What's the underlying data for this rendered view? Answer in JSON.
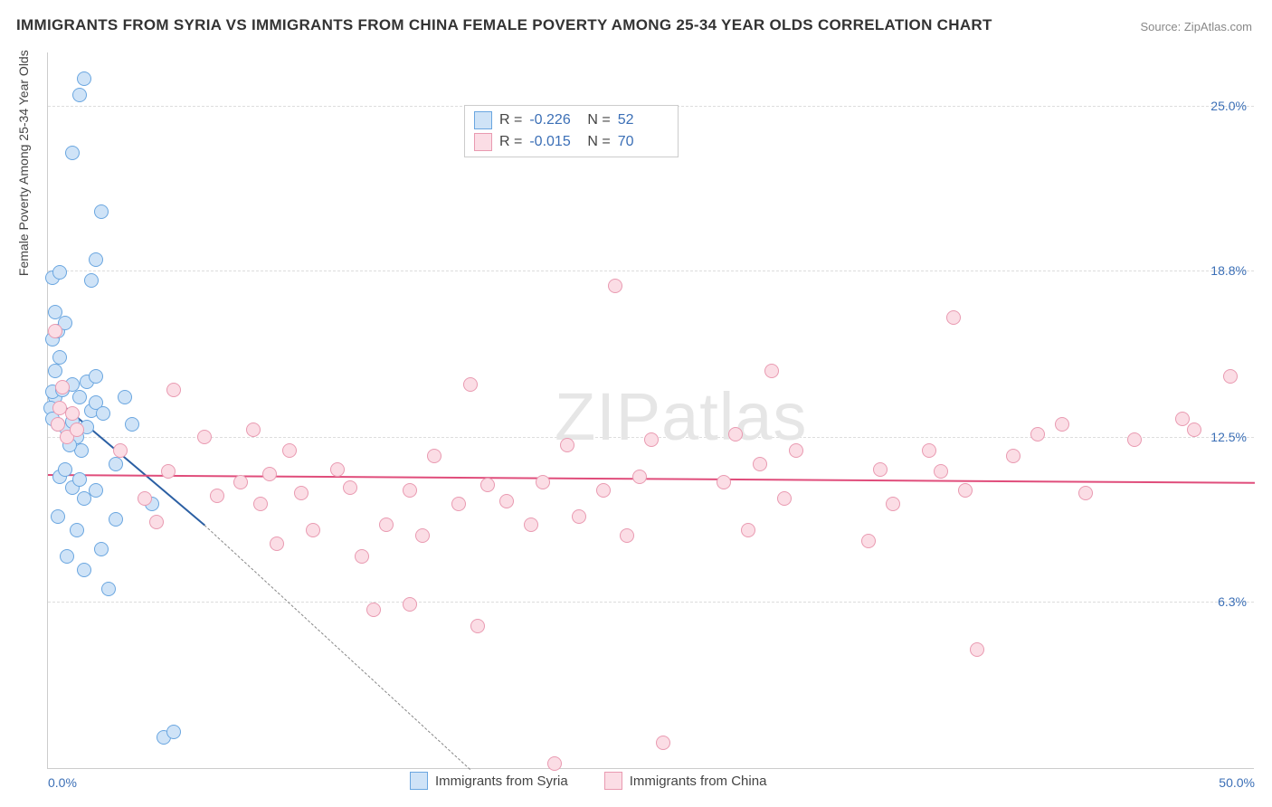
{
  "title": "IMMIGRANTS FROM SYRIA VS IMMIGRANTS FROM CHINA FEMALE POVERTY AMONG 25-34 YEAR OLDS CORRELATION CHART",
  "source_label": "Source: ZipAtlas.com",
  "watermark": {
    "bold": "ZIP",
    "light": "atlas"
  },
  "y_axis_title": "Female Poverty Among 25-34 Year Olds",
  "chart": {
    "type": "scatter",
    "xlim": [
      0,
      50
    ],
    "ylim": [
      0,
      27
    ],
    "x_ticks": [
      {
        "v": 0,
        "label": "0.0%"
      },
      {
        "v": 50,
        "label": "50.0%"
      }
    ],
    "y_ticks": [
      {
        "v": 6.3,
        "label": "6.3%"
      },
      {
        "v": 12.5,
        "label": "12.5%"
      },
      {
        "v": 18.8,
        "label": "18.8%"
      },
      {
        "v": 25.0,
        "label": "25.0%"
      }
    ],
    "grid_color": "#dddddd",
    "axis_color": "#cccccc",
    "background_color": "#ffffff",
    "marker_radius": 8,
    "marker_stroke_width": 1.5,
    "series": [
      {
        "name": "Immigrants from Syria",
        "fill": "#cfe3f7",
        "stroke": "#6aa6e0",
        "trend_color": "#2b5fa3",
        "R": "-0.226",
        "N": "52",
        "trend": {
          "x1": 0,
          "y1": 14.2,
          "x2": 6.5,
          "y2": 9.2,
          "dash_to_x": 17.5,
          "dash_to_y": 0
        },
        "points": [
          [
            0.3,
            14.0
          ],
          [
            0.2,
            14.2
          ],
          [
            0.1,
            13.6
          ],
          [
            0.4,
            13.0
          ],
          [
            0.2,
            13.2
          ],
          [
            0.6,
            14.3
          ],
          [
            0.3,
            15.0
          ],
          [
            0.5,
            15.5
          ],
          [
            0.2,
            16.2
          ],
          [
            0.4,
            16.5
          ],
          [
            0.7,
            16.8
          ],
          [
            0.3,
            17.2
          ],
          [
            0.8,
            12.8
          ],
          [
            1.0,
            13.1
          ],
          [
            1.2,
            12.5
          ],
          [
            1.4,
            12.0
          ],
          [
            1.6,
            12.9
          ],
          [
            1.8,
            13.5
          ],
          [
            1.0,
            14.5
          ],
          [
            1.3,
            14.0
          ],
          [
            1.6,
            14.6
          ],
          [
            2.0,
            13.8
          ],
          [
            2.3,
            13.4
          ],
          [
            2.0,
            14.8
          ],
          [
            0.5,
            11.0
          ],
          [
            0.7,
            11.3
          ],
          [
            1.0,
            10.6
          ],
          [
            1.3,
            10.9
          ],
          [
            1.5,
            10.2
          ],
          [
            2.0,
            10.5
          ],
          [
            0.4,
            9.5
          ],
          [
            1.2,
            9.0
          ],
          [
            2.2,
            8.3
          ],
          [
            2.8,
            9.4
          ],
          [
            0.8,
            8.0
          ],
          [
            1.5,
            7.5
          ],
          [
            2.5,
            6.8
          ],
          [
            0.9,
            12.2
          ],
          [
            2.8,
            11.5
          ],
          [
            0.2,
            18.5
          ],
          [
            0.5,
            18.7
          ],
          [
            1.8,
            18.4
          ],
          [
            1.0,
            23.2
          ],
          [
            2.2,
            21.0
          ],
          [
            1.5,
            26.0
          ],
          [
            1.3,
            25.4
          ],
          [
            2.0,
            19.2
          ],
          [
            4.8,
            1.2
          ],
          [
            5.2,
            1.4
          ],
          [
            4.3,
            10.0
          ],
          [
            3.5,
            13.0
          ],
          [
            3.2,
            14.0
          ]
        ]
      },
      {
        "name": "Immigrants from China",
        "fill": "#fbdde5",
        "stroke": "#e99ab1",
        "trend_color": "#e04d7b",
        "R": "-0.015",
        "N": "70",
        "trend": {
          "x1": 0,
          "y1": 11.1,
          "x2": 50,
          "y2": 10.8
        },
        "points": [
          [
            0.3,
            16.5
          ],
          [
            0.5,
            13.6
          ],
          [
            0.4,
            13.0
          ],
          [
            0.8,
            12.5
          ],
          [
            1.0,
            13.4
          ],
          [
            0.6,
            14.4
          ],
          [
            1.2,
            12.8
          ],
          [
            5.2,
            14.3
          ],
          [
            3.0,
            12.0
          ],
          [
            4.0,
            10.2
          ],
          [
            5.0,
            11.2
          ],
          [
            6.5,
            12.5
          ],
          [
            7.0,
            10.3
          ],
          [
            8.0,
            10.8
          ],
          [
            8.5,
            12.8
          ],
          [
            8.8,
            10.0
          ],
          [
            9.2,
            11.1
          ],
          [
            9.5,
            8.5
          ],
          [
            10.0,
            12.0
          ],
          [
            10.5,
            10.4
          ],
          [
            11.0,
            9.0
          ],
          [
            12.0,
            11.3
          ],
          [
            12.5,
            10.6
          ],
          [
            13.0,
            8.0
          ],
          [
            13.5,
            6.0
          ],
          [
            14.0,
            9.2
          ],
          [
            15.0,
            10.5
          ],
          [
            15.5,
            8.8
          ],
          [
            16.0,
            11.8
          ],
          [
            17.0,
            10.0
          ],
          [
            17.5,
            14.5
          ],
          [
            17.8,
            5.4
          ],
          [
            18.2,
            10.7
          ],
          [
            19.0,
            10.1
          ],
          [
            20.0,
            9.2
          ],
          [
            20.5,
            10.8
          ],
          [
            21.0,
            0.2
          ],
          [
            21.5,
            12.2
          ],
          [
            22.0,
            9.5
          ],
          [
            23.0,
            10.5
          ],
          [
            23.5,
            18.2
          ],
          [
            24.0,
            8.8
          ],
          [
            24.5,
            11.0
          ],
          [
            25.0,
            12.4
          ],
          [
            25.5,
            1.0
          ],
          [
            28.0,
            10.8
          ],
          [
            28.5,
            12.6
          ],
          [
            29.0,
            9.0
          ],
          [
            29.5,
            11.5
          ],
          [
            30.0,
            15.0
          ],
          [
            30.5,
            10.2
          ],
          [
            31.0,
            12.0
          ],
          [
            34.0,
            8.6
          ],
          [
            34.5,
            11.3
          ],
          [
            35.0,
            10.0
          ],
          [
            36.5,
            12.0
          ],
          [
            37.0,
            11.2
          ],
          [
            37.5,
            17.0
          ],
          [
            38.0,
            10.5
          ],
          [
            38.5,
            4.5
          ],
          [
            40.0,
            11.8
          ],
          [
            41.0,
            12.6
          ],
          [
            42.0,
            13.0
          ],
          [
            43.0,
            10.4
          ],
          [
            45.0,
            12.4
          ],
          [
            47.0,
            13.2
          ],
          [
            47.5,
            12.8
          ],
          [
            49.0,
            14.8
          ],
          [
            15.0,
            6.2
          ],
          [
            4.5,
            9.3
          ]
        ]
      }
    ]
  },
  "legend_bottom": [
    {
      "swatch_fill": "#cfe3f7",
      "swatch_stroke": "#6aa6e0",
      "label": "Immigrants from Syria"
    },
    {
      "swatch_fill": "#fbdde5",
      "swatch_stroke": "#e99ab1",
      "label": "Immigrants from China"
    }
  ]
}
